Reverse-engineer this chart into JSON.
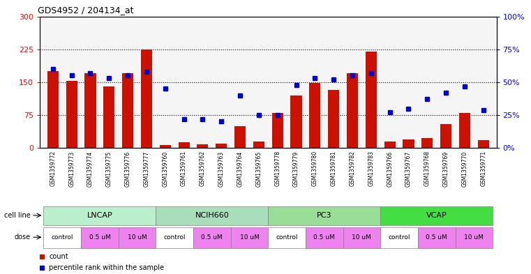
{
  "title": "GDS4952 / 204134_at",
  "samples": [
    "GSM1359772",
    "GSM1359773",
    "GSM1359774",
    "GSM1359775",
    "GSM1359776",
    "GSM1359777",
    "GSM1359760",
    "GSM1359761",
    "GSM1359762",
    "GSM1359763",
    "GSM1359764",
    "GSM1359765",
    "GSM1359778",
    "GSM1359779",
    "GSM1359780",
    "GSM1359781",
    "GSM1359782",
    "GSM1359783",
    "GSM1359766",
    "GSM1359767",
    "GSM1359768",
    "GSM1359769",
    "GSM1359770",
    "GSM1359771"
  ],
  "counts": [
    175,
    153,
    170,
    140,
    170,
    224,
    7,
    13,
    8,
    10,
    50,
    15,
    80,
    120,
    148,
    133,
    170,
    220,
    15,
    20,
    22,
    55,
    80,
    18
  ],
  "percentile_ranks": [
    60,
    55,
    57,
    53,
    55,
    58,
    45,
    22,
    22,
    20,
    40,
    25,
    25,
    48,
    53,
    52,
    55,
    57,
    27,
    30,
    37,
    42,
    47,
    29
  ],
  "cell_line_names": [
    "LNCAP",
    "NCIH660",
    "PC3",
    "VCAP"
  ],
  "cell_line_colors": [
    "#BBEECC",
    "#AADDBB",
    "#99DD99",
    "#44DD44"
  ],
  "dose_labels": [
    "control",
    "0.5 uM",
    "10 uM"
  ],
  "dose_colors": [
    "#FFFFFF",
    "#EE82EE",
    "#EE82EE"
  ],
  "bar_color": "#CC1100",
  "dot_color": "#0000CC",
  "ylim_left": [
    0,
    300
  ],
  "ylim_right": [
    0,
    100
  ],
  "yticks_left": [
    0,
    75,
    150,
    225,
    300
  ],
  "ytick_labels_left": [
    "0",
    "75",
    "150",
    "225",
    "300"
  ],
  "yticks_right": [
    0,
    25,
    50,
    75,
    100
  ],
  "ytick_labels_right": [
    "0%",
    "25%",
    "50%",
    "75%",
    "100%"
  ],
  "bg_color": "#FFFFFF",
  "plot_bg_color": "#F5F5F5",
  "grid_color": "#000000",
  "label_area_color": "#D0D0D0"
}
